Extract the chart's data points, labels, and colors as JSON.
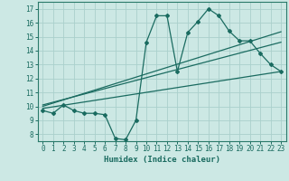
{
  "xlabel": "Humidex (Indice chaleur)",
  "background_color": "#cce8e4",
  "plot_bg_color": "#cce8e4",
  "grid_color": "#aad0cc",
  "line_color": "#1a6b60",
  "axis_color": "#2a7a6a",
  "xlim": [
    -0.5,
    23.5
  ],
  "ylim": [
    7.5,
    17.5
  ],
  "xticks": [
    0,
    1,
    2,
    3,
    4,
    5,
    6,
    7,
    8,
    9,
    10,
    11,
    12,
    13,
    14,
    15,
    16,
    17,
    18,
    19,
    20,
    21,
    22,
    23
  ],
  "yticks": [
    8,
    9,
    10,
    11,
    12,
    13,
    14,
    15,
    16,
    17
  ],
  "series1_x": [
    0,
    1,
    2,
    3,
    4,
    5,
    6,
    7,
    8,
    9,
    10,
    11,
    12,
    13,
    14,
    15,
    16,
    17,
    18,
    19,
    20,
    21,
    22,
    23
  ],
  "series1_y": [
    9.7,
    9.5,
    10.1,
    9.7,
    9.5,
    9.5,
    9.4,
    7.7,
    7.6,
    9.0,
    14.6,
    16.5,
    16.5,
    12.5,
    15.3,
    16.1,
    17.0,
    16.5,
    15.4,
    14.7,
    14.7,
    13.8,
    13.0,
    12.5
  ],
  "series2_x": [
    0,
    23
  ],
  "series2_y": [
    9.85,
    12.5
  ],
  "series3_x": [
    0,
    23
  ],
  "series3_y": [
    10.0,
    15.35
  ],
  "series4_x": [
    0,
    23
  ],
  "series4_y": [
    10.1,
    14.6
  ],
  "marker": "D",
  "markersize": 2.0,
  "linewidth": 0.9
}
